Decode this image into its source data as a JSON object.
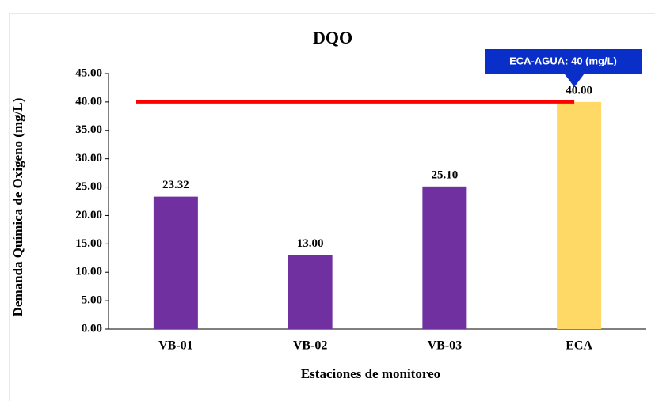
{
  "chart_data": {
    "type": "bar",
    "title": "DQO",
    "x_label": "Estaciones de monitoreo",
    "y_label": "Demanda Química de Oxigeno (mg/L)",
    "categories": [
      "VB-01",
      "VB-02",
      "VB-03",
      "ECA"
    ],
    "values": [
      23.32,
      13,
      25.1,
      40
    ],
    "value_labels": [
      "23.32",
      "13.00",
      "25.10",
      "40.00"
    ],
    "colors": [
      "#7030a0",
      "#7030a0",
      "#7030a0",
      "#ffd966"
    ],
    "ylim": [
      0,
      45
    ],
    "yticks": [
      {
        "value": 0,
        "label": "0.00"
      },
      {
        "value": 5,
        "label": "5.00"
      },
      {
        "value": 10,
        "label": "10.00"
      },
      {
        "value": 15,
        "label": "15.00"
      },
      {
        "value": 20,
        "label": "20.00"
      },
      {
        "value": 25,
        "label": "25.00"
      },
      {
        "value": 30,
        "label": "30.00"
      },
      {
        "value": 35,
        "label": "35.00"
      },
      {
        "value": 40,
        "label": "40.00"
      },
      {
        "value": 45,
        "label": "45.00"
      }
    ],
    "grid": false,
    "reference_line": {
      "value": 40,
      "color": "#ff0000"
    },
    "annotation": {
      "text": "ECA-AGUA: 40 (mg/L)",
      "color": "#0a2fc8"
    }
  }
}
